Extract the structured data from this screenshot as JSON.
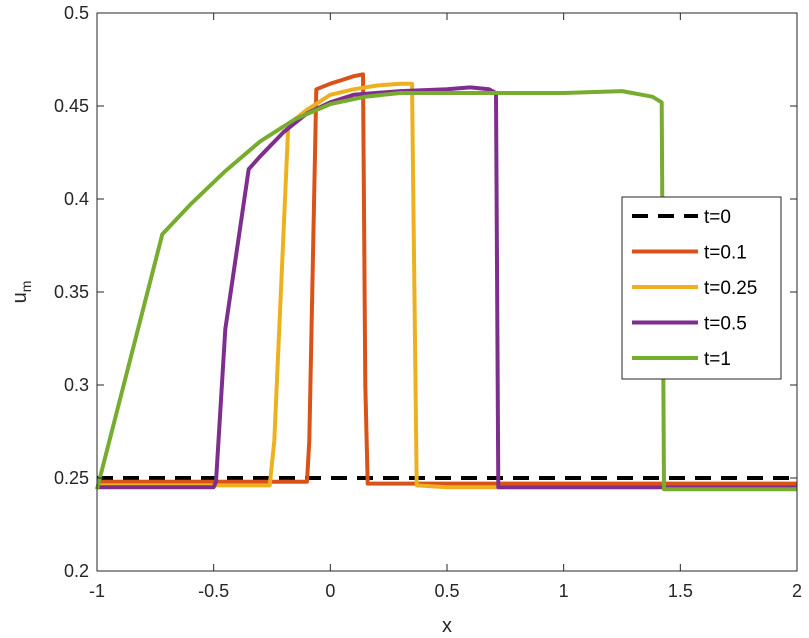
{
  "chart_data": {
    "type": "line",
    "title": "",
    "xlabel": "x",
    "ylabel": {
      "main": "u",
      "sub": "m"
    },
    "xlim": [
      -1,
      2
    ],
    "ylim": [
      0.2,
      0.5
    ],
    "xticks": [
      -1,
      -0.5,
      0,
      0.5,
      1,
      1.5,
      2
    ],
    "xtick_labels": [
      "-1",
      "-0.5",
      "0",
      "0.5",
      "1",
      "1.5",
      "2"
    ],
    "yticks": [
      0.2,
      0.25,
      0.3,
      0.35,
      0.4,
      0.45,
      0.5
    ],
    "ytick_labels": [
      "0.2",
      "0.25",
      "0.3",
      "0.35",
      "0.4",
      "0.45",
      "0.5"
    ],
    "grid": false,
    "legend_position": "right",
    "series": [
      {
        "name": "t=0",
        "color": "#000000",
        "dash": true,
        "x": [
          -1,
          2
        ],
        "y": [
          0.25,
          0.25
        ]
      },
      {
        "name": "t=0.1",
        "color": "#D95319",
        "dash": false,
        "x": [
          -1,
          -0.5,
          -0.1,
          -0.09,
          -0.06,
          0,
          0.05,
          0.1,
          0.14,
          0.15,
          0.16,
          0.5,
          1,
          1.5,
          2
        ],
        "y": [
          0.248,
          0.248,
          0.248,
          0.27,
          0.459,
          0.462,
          0.464,
          0.466,
          0.467,
          0.3,
          0.247,
          0.247,
          0.247,
          0.247,
          0.247
        ]
      },
      {
        "name": "t=0.25",
        "color": "#EDB120",
        "dash": false,
        "x": [
          -1,
          -0.5,
          -0.26,
          -0.24,
          -0.18,
          -0.1,
          -0.05,
          0,
          0.1,
          0.2,
          0.3,
          0.35,
          0.37,
          0.5,
          1,
          2
        ],
        "y": [
          0.246,
          0.246,
          0.246,
          0.27,
          0.44,
          0.448,
          0.452,
          0.456,
          0.459,
          0.461,
          0.462,
          0.462,
          0.246,
          0.245,
          0.245,
          0.245
        ]
      },
      {
        "name": "t=0.5",
        "color": "#7E2F8E",
        "dash": false,
        "x": [
          -1,
          -0.5,
          -0.49,
          -0.45,
          -0.35,
          -0.3,
          -0.2,
          -0.1,
          0,
          0.1,
          0.3,
          0.5,
          0.6,
          0.68,
          0.71,
          0.72,
          0.8,
          1,
          2
        ],
        "y": [
          0.245,
          0.245,
          0.248,
          0.33,
          0.416,
          0.423,
          0.436,
          0.446,
          0.452,
          0.456,
          0.458,
          0.459,
          0.46,
          0.459,
          0.457,
          0.245,
          0.245,
          0.245,
          0.245
        ]
      },
      {
        "name": "t=1",
        "color": "#77AC30",
        "dash": false,
        "x": [
          -1,
          -0.72,
          -0.6,
          -0.45,
          -0.3,
          -0.15,
          0,
          0.15,
          0.3,
          0.5,
          1,
          1.25,
          1.38,
          1.42,
          1.43,
          1.5,
          2
        ],
        "y": [
          0.244,
          0.381,
          0.397,
          0.415,
          0.431,
          0.443,
          0.451,
          0.455,
          0.457,
          0.457,
          0.457,
          0.458,
          0.455,
          0.452,
          0.244,
          0.244,
          0.244
        ]
      }
    ]
  }
}
